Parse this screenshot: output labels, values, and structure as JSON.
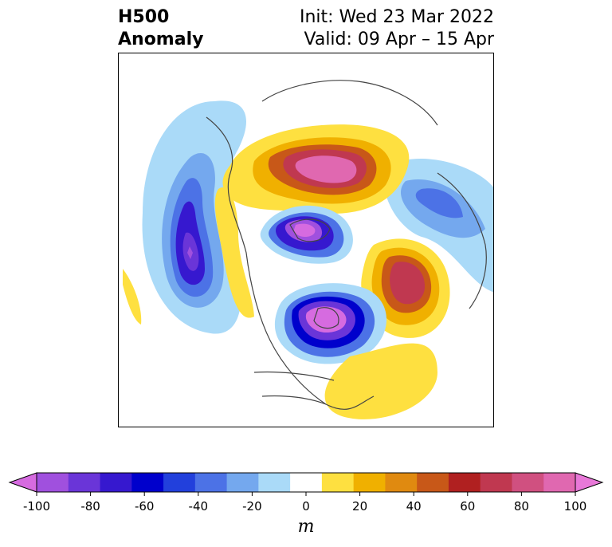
{
  "title": {
    "line1": "H500",
    "line2": "Anomaly",
    "init": "Init: Wed 23 Mar 2022",
    "valid": "Valid: 09 Apr – 15 Apr"
  },
  "colorbar": {
    "unit": "m",
    "min": -100,
    "max": 100,
    "tick_labels": [
      "-100",
      "-80",
      "-60",
      "-40",
      "-20",
      "0",
      "20",
      "40",
      "60",
      "80",
      "100"
    ],
    "tick_values": [
      -100,
      -80,
      -60,
      -40,
      -20,
      0,
      20,
      40,
      60,
      80,
      100
    ],
    "colors": [
      "#d66be0",
      "#a050de",
      "#6a35d8",
      "#3618cf",
      "#0000cc",
      "#2240dc",
      "#4c72e6",
      "#74a8ee",
      "#aadaf8",
      "#ffffff",
      "#fee040",
      "#f0b000",
      "#e08a10",
      "#c85818",
      "#b02020",
      "#c03850",
      "#d05080",
      "#e068b0",
      "#e878d8"
    ]
  },
  "map": {
    "anomalies": [
      {
        "name": "pacific-low",
        "sign": "negative",
        "peak": -100
      },
      {
        "name": "arctic-low",
        "sign": "negative",
        "peak": -100
      },
      {
        "name": "hudson-low",
        "sign": "negative",
        "peak": -100
      },
      {
        "name": "europe-low",
        "sign": "negative",
        "peak": -50
      },
      {
        "name": "siberia-high",
        "sign": "positive",
        "peak": 100
      },
      {
        "name": "atlantic-high",
        "sign": "positive",
        "peak": 75
      },
      {
        "name": "alaska-high",
        "sign": "positive",
        "peak": 35
      },
      {
        "name": "se-us-high",
        "sign": "positive",
        "peak": 20
      }
    ]
  }
}
